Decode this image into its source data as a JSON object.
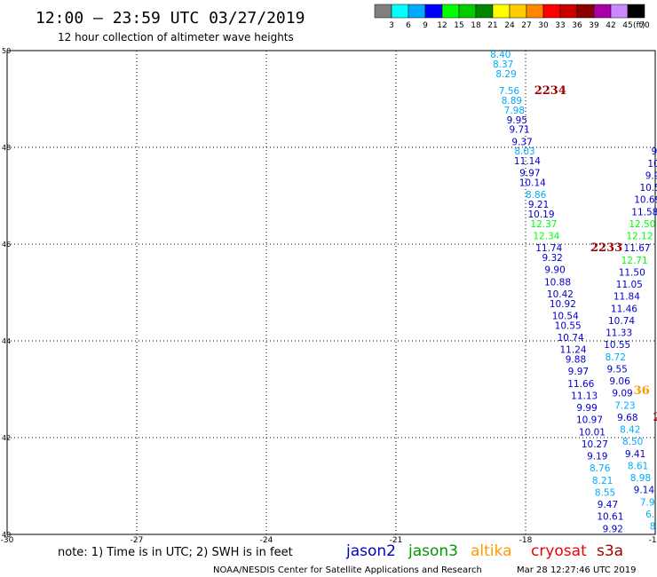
{
  "header": {
    "title": "12:00 – 23:59 UTC 03/27/2019",
    "subtitle": "12 hour collection of altimeter wave heights"
  },
  "colorbar": {
    "unit": "(ft)",
    "bins": [
      {
        "label": "3",
        "color": "#808080"
      },
      {
        "label": "6",
        "color": "#00ffff"
      },
      {
        "label": "9",
        "color": "#00aaff"
      },
      {
        "label": "12",
        "color": "#0000ff"
      },
      {
        "label": "15",
        "color": "#00ff00"
      },
      {
        "label": "18",
        "color": "#00cc00"
      },
      {
        "label": "21",
        "color": "#008800"
      },
      {
        "label": "24",
        "color": "#ffff00"
      },
      {
        "label": "27",
        "color": "#ffcc00"
      },
      {
        "label": "30",
        "color": "#ff8800"
      },
      {
        "label": "33",
        "color": "#ff0000"
      },
      {
        "label": "36",
        "color": "#cc0000"
      },
      {
        "label": "39",
        "color": "#880000"
      },
      {
        "label": "42",
        "color": "#aa00aa"
      },
      {
        "label": "45",
        "color": "#cc88ff"
      },
      {
        "label": "70",
        "color": "#000000"
      }
    ]
  },
  "footer": {
    "note": "note: 1) Time is in UTC; 2) SWH is in feet",
    "satellites": [
      {
        "name": "jason2",
        "color": "#0000cc"
      },
      {
        "name": "jason3",
        "color": "#009900"
      },
      {
        "name": "altika",
        "color": "#ff9900"
      },
      {
        "name": "cryosat",
        "color": "#ee0000"
      },
      {
        "name": "s3a",
        "color": "#990000"
      }
    ],
    "credit": "NOAA/NESDIS Center for Satellite Applications and Research",
    "timestamp": "Mar 28 12:27:46 UTC 2019"
  },
  "chart_data": {
    "type": "scatter",
    "xlim": [
      -30,
      -15
    ],
    "ylim": [
      40,
      50
    ],
    "x_ticks": [
      "-30",
      "-27",
      "-24",
      "-21",
      "-18",
      "-15"
    ],
    "y_ticks": [
      "40",
      "42",
      "44",
      "46",
      "48",
      "50"
    ],
    "grid": true,
    "track_labels": [
      {
        "text": "2234",
        "x": -17.8,
        "y": 49.1,
        "color": "#990000"
      },
      {
        "text": "2233",
        "x": -16.5,
        "y": 45.85,
        "color": "#990000"
      },
      {
        "text": "36",
        "x": -15.5,
        "y": 42.9,
        "color": "#ff9900"
      },
      {
        "text": "21",
        "x": -15.05,
        "y": 42.35,
        "color": "#990000"
      }
    ],
    "tracks": [
      {
        "name": "2234",
        "points": [
          {
            "x": -18.58,
            "y": 49.85,
            "v": "8.40",
            "c": "#00aaff"
          },
          {
            "x": -18.52,
            "y": 49.65,
            "v": "8.37",
            "c": "#00aaff"
          },
          {
            "x": -18.45,
            "y": 49.45,
            "v": "8.29",
            "c": "#00aaff"
          },
          {
            "x": -18.38,
            "y": 49.1,
            "v": "7.56",
            "c": "#00aaff"
          },
          {
            "x": -18.32,
            "y": 48.9,
            "v": "8.89",
            "c": "#00aaff"
          },
          {
            "x": -18.26,
            "y": 48.7,
            "v": "7.98",
            "c": "#00aaff"
          },
          {
            "x": -18.2,
            "y": 48.5,
            "v": "9.95",
            "c": "#0000cc"
          },
          {
            "x": -18.14,
            "y": 48.3,
            "v": "9.71",
            "c": "#0000cc"
          },
          {
            "x": -18.08,
            "y": 48.05,
            "v": "9.37",
            "c": "#0000cc"
          },
          {
            "x": -18.02,
            "y": 47.85,
            "v": "8.03",
            "c": "#00aaff"
          },
          {
            "x": -17.96,
            "y": 47.65,
            "v": "11.14",
            "c": "#0000cc"
          },
          {
            "x": -17.9,
            "y": 47.4,
            "v": "9.97",
            "c": "#0000cc"
          },
          {
            "x": -17.84,
            "y": 47.2,
            "v": "10.14",
            "c": "#0000cc"
          },
          {
            "x": -17.76,
            "y": 46.95,
            "v": "8.86",
            "c": "#00aaff"
          },
          {
            "x": -17.7,
            "y": 46.75,
            "v": "9.21",
            "c": "#0000cc"
          },
          {
            "x": -17.64,
            "y": 46.55,
            "v": "10.19",
            "c": "#0000cc"
          },
          {
            "x": -17.58,
            "y": 46.35,
            "v": "12.37",
            "c": "#00ff00"
          },
          {
            "x": -17.52,
            "y": 46.1,
            "v": "12.34",
            "c": "#00ff00"
          },
          {
            "x": -17.46,
            "y": 45.85,
            "v": "11.74",
            "c": "#0000cc"
          },
          {
            "x": -17.38,
            "y": 45.65,
            "v": "9.32",
            "c": "#0000cc"
          },
          {
            "x": -17.32,
            "y": 45.4,
            "v": "9.90",
            "c": "#0000cc"
          },
          {
            "x": -17.26,
            "y": 45.15,
            "v": "10.88",
            "c": "#0000cc"
          },
          {
            "x": -17.2,
            "y": 44.9,
            "v": "10.42",
            "c": "#0000cc"
          },
          {
            "x": -17.14,
            "y": 44.7,
            "v": "10.92",
            "c": "#0000cc"
          },
          {
            "x": -17.08,
            "y": 44.45,
            "v": "10.54",
            "c": "#0000cc"
          },
          {
            "x": -17.02,
            "y": 44.25,
            "v": "10.55",
            "c": "#0000cc"
          },
          {
            "x": -16.96,
            "y": 44.0,
            "v": "10.74",
            "c": "#0000cc"
          },
          {
            "x": -16.9,
            "y": 43.75,
            "v": "11.24",
            "c": "#0000cc"
          },
          {
            "x": -16.84,
            "y": 43.55,
            "v": "9.88",
            "c": "#0000cc"
          },
          {
            "x": -16.78,
            "y": 43.3,
            "v": "9.97",
            "c": "#0000cc"
          },
          {
            "x": -16.72,
            "y": 43.05,
            "v": "11.66",
            "c": "#0000cc"
          },
          {
            "x": -16.64,
            "y": 42.8,
            "v": "11.13",
            "c": "#0000cc"
          },
          {
            "x": -16.58,
            "y": 42.55,
            "v": "9.99",
            "c": "#0000cc"
          },
          {
            "x": -16.52,
            "y": 42.3,
            "v": "10.97",
            "c": "#0000cc"
          },
          {
            "x": -16.46,
            "y": 42.05,
            "v": "10.01",
            "c": "#0000cc"
          },
          {
            "x": -16.4,
            "y": 41.8,
            "v": "10.27",
            "c": "#0000cc"
          },
          {
            "x": -16.34,
            "y": 41.55,
            "v": "9.19",
            "c": "#0000cc"
          },
          {
            "x": -16.28,
            "y": 41.3,
            "v": "8.76",
            "c": "#00aaff"
          },
          {
            "x": -16.22,
            "y": 41.05,
            "v": "8.21",
            "c": "#00aaff"
          },
          {
            "x": -16.16,
            "y": 40.8,
            "v": "8.55",
            "c": "#00aaff"
          },
          {
            "x": -16.1,
            "y": 40.55,
            "v": "9.47",
            "c": "#0000cc"
          },
          {
            "x": -16.04,
            "y": 40.3,
            "v": "10.61",
            "c": "#0000cc"
          },
          {
            "x": -15.98,
            "y": 40.05,
            "v": "9.92",
            "c": "#0000cc"
          }
        ]
      },
      {
        "name": "2233",
        "points": [
          {
            "x": -15.02,
            "y": 47.85,
            "v": "9",
            "c": "#0000cc"
          },
          {
            "x": -15.04,
            "y": 47.6,
            "v": "10",
            "c": "#0000cc"
          },
          {
            "x": -15.06,
            "y": 47.35,
            "v": "9.9",
            "c": "#0000cc"
          },
          {
            "x": -15.12,
            "y": 47.1,
            "v": "10.5",
            "c": "#0000cc"
          },
          {
            "x": -15.18,
            "y": 46.85,
            "v": "10.69",
            "c": "#0000cc"
          },
          {
            "x": -15.24,
            "y": 46.6,
            "v": "11.58",
            "c": "#0000cc"
          },
          {
            "x": -15.3,
            "y": 46.35,
            "v": "12.50",
            "c": "#00ff00"
          },
          {
            "x": -15.36,
            "y": 46.1,
            "v": "12.12",
            "c": "#00ff00"
          },
          {
            "x": -15.42,
            "y": 45.85,
            "v": "11.67",
            "c": "#0000cc"
          },
          {
            "x": -15.48,
            "y": 45.6,
            "v": "12.71",
            "c": "#00ff00"
          },
          {
            "x": -15.54,
            "y": 45.35,
            "v": "11.50",
            "c": "#0000cc"
          },
          {
            "x": -15.6,
            "y": 45.1,
            "v": "11.05",
            "c": "#0000cc"
          },
          {
            "x": -15.66,
            "y": 44.85,
            "v": "11.84",
            "c": "#0000cc"
          },
          {
            "x": -15.72,
            "y": 44.6,
            "v": "11.46",
            "c": "#0000cc"
          },
          {
            "x": -15.78,
            "y": 44.35,
            "v": "10.74",
            "c": "#0000cc"
          },
          {
            "x": -15.84,
            "y": 44.1,
            "v": "11.33",
            "c": "#0000cc"
          },
          {
            "x": -15.88,
            "y": 43.85,
            "v": "10.55",
            "c": "#0000cc"
          },
          {
            "x": -15.92,
            "y": 43.6,
            "v": "8.72",
            "c": "#00aaff"
          },
          {
            "x": -15.88,
            "y": 43.35,
            "v": "9.55",
            "c": "#0000cc"
          },
          {
            "x": -15.82,
            "y": 43.1,
            "v": "9.06",
            "c": "#0000cc"
          },
          {
            "x": -15.76,
            "y": 42.85,
            "v": "9.09",
            "c": "#0000cc"
          },
          {
            "x": -15.7,
            "y": 42.6,
            "v": "7.23",
            "c": "#00aaff"
          },
          {
            "x": -15.64,
            "y": 42.35,
            "v": "9.68",
            "c": "#0000cc"
          },
          {
            "x": -15.58,
            "y": 42.1,
            "v": "8.42",
            "c": "#00aaff"
          },
          {
            "x": -15.52,
            "y": 41.85,
            "v": "8.50",
            "c": "#00aaff"
          },
          {
            "x": -15.46,
            "y": 41.6,
            "v": "9.41",
            "c": "#0000cc"
          },
          {
            "x": -15.4,
            "y": 41.35,
            "v": "8.61",
            "c": "#00aaff"
          },
          {
            "x": -15.34,
            "y": 41.1,
            "v": "8.98",
            "c": "#00aaff"
          },
          {
            "x": -15.26,
            "y": 40.85,
            "v": "9.14",
            "c": "#0000cc"
          },
          {
            "x": -15.18,
            "y": 40.6,
            "v": "7.9",
            "c": "#00aaff"
          },
          {
            "x": -15.12,
            "y": 40.35,
            "v": "6.",
            "c": "#00aaff"
          },
          {
            "x": -15.06,
            "y": 40.1,
            "v": "8",
            "c": "#00aaff"
          }
        ]
      }
    ]
  }
}
